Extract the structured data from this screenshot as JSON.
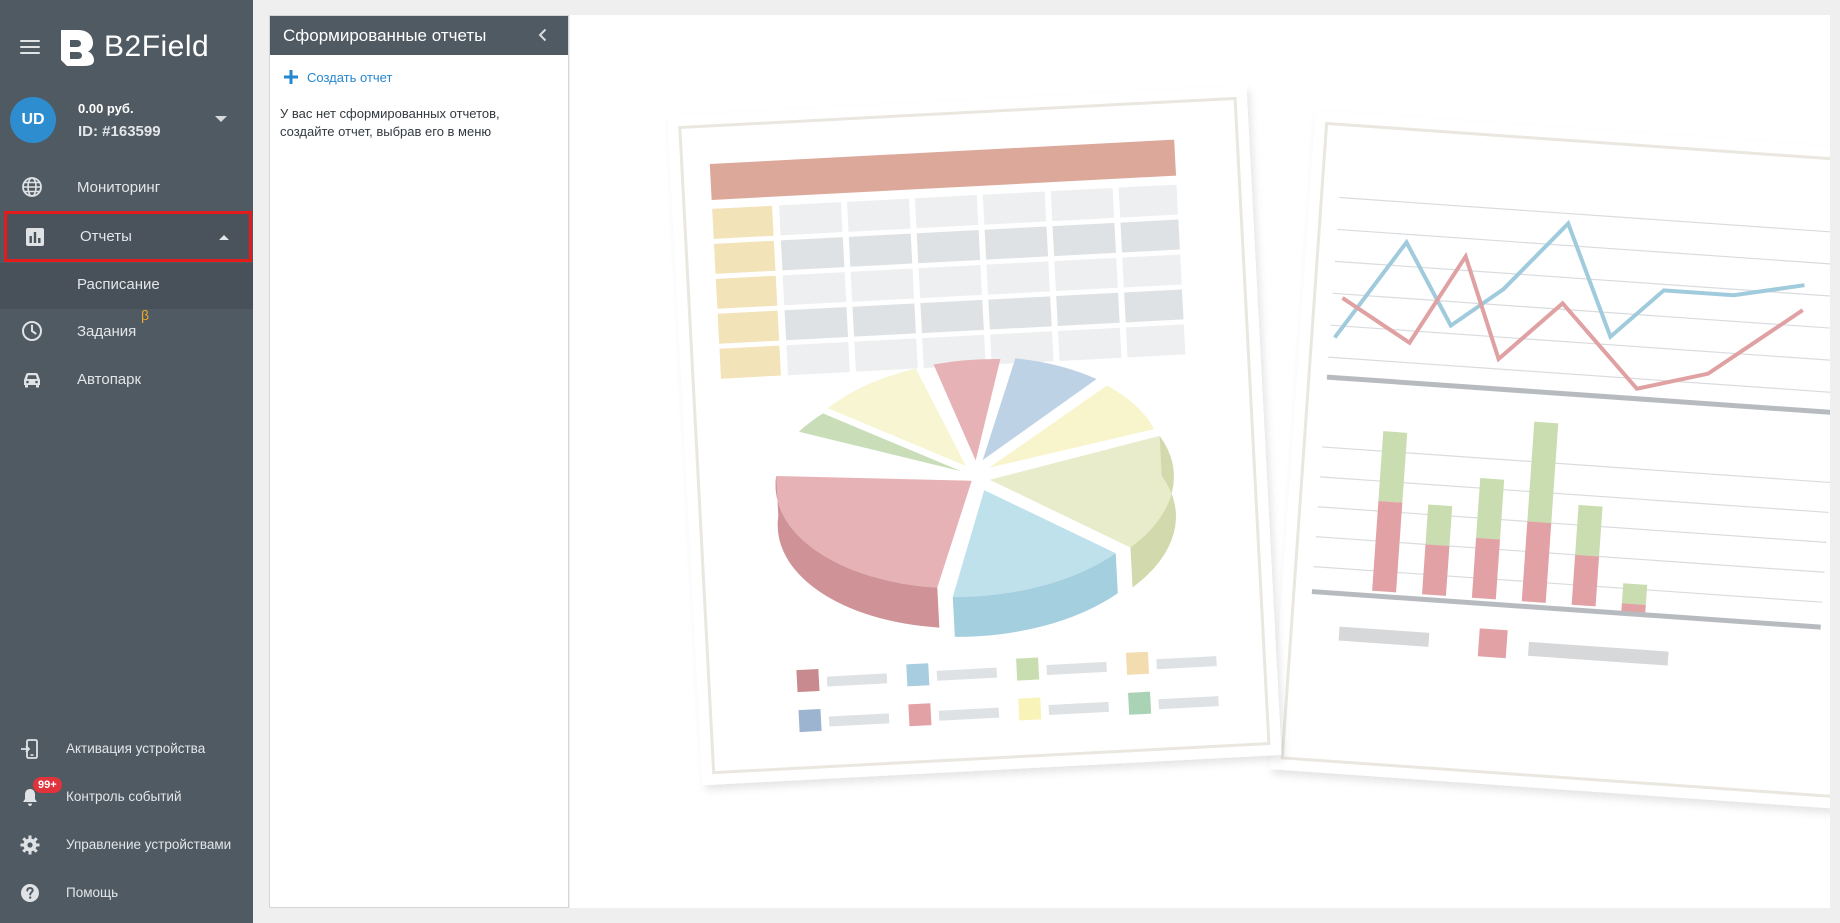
{
  "app": {
    "name": "B2Field"
  },
  "account": {
    "initials": "UD",
    "balance": "0.00 руб.",
    "id": "ID: #163599"
  },
  "nav": {
    "monitoring": "Мониторинг",
    "reports": "Отчеты",
    "schedule": "Расписание",
    "tasks": "Задания",
    "tasks_badge": "β",
    "fleet": "Автопарк"
  },
  "bottom_nav": {
    "activation": "Активация устройства",
    "events": "Контроль событий",
    "events_badge": "99+",
    "devices": "Управление устройствами",
    "help": "Помощь"
  },
  "reports_panel": {
    "title": "Сформированные отчеты",
    "create_label": "Создать отчет",
    "empty_message": "У вас нет сформированных отчетов, создайте отчет, выбрав его в меню"
  },
  "colors": {
    "sidebar": "#505a63",
    "accent": "#2686cf",
    "highlight": "#e41b1b",
    "beta": "#f0a529",
    "badge": "#e0333b"
  },
  "icons": {
    "monitoring": "globe-icon",
    "reports": "bar-chart-icon",
    "tasks": "clock-icon",
    "fleet": "car-icon",
    "activation": "device-plus-icon",
    "events": "bell-icon",
    "devices": "gear-icon",
    "help": "help-circle-icon"
  }
}
